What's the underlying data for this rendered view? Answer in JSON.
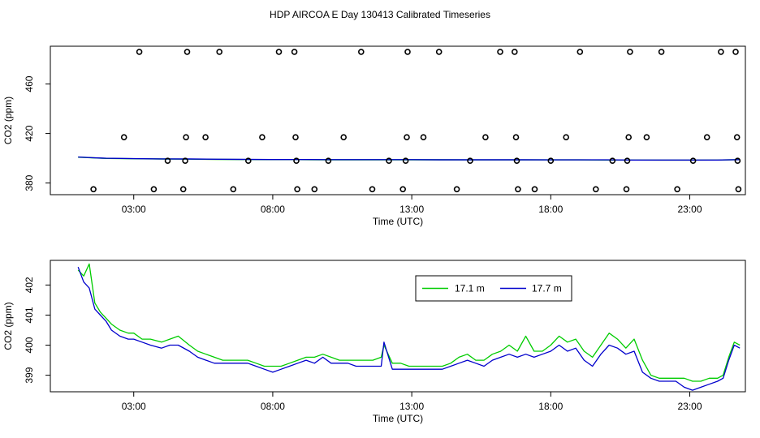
{
  "figure": {
    "title": "HDP AIRCOA E  Day 130413  Calibrated Timeseries",
    "colors": {
      "background": "#ffffff",
      "axes": "#000000",
      "green": "#00cc00",
      "blue": "#0000cc"
    }
  },
  "chart_data": [
    {
      "type": "scatter",
      "xlabel": "Time (UTC)",
      "ylabel": "CO2 (ppm)",
      "xlim": [
        0.0,
        25.0
      ],
      "ylim": [
        370.6,
        490.5
      ],
      "x_ticks": [
        3,
        8,
        13,
        18,
        23
      ],
      "x_tick_labels": [
        "03:00",
        "08:00",
        "13:00",
        "18:00",
        "23:00"
      ],
      "y_ticks": [
        380,
        420,
        460
      ],
      "y_tick_labels": [
        "380",
        "420",
        "460"
      ],
      "grid": false,
      "marker": "open-circle",
      "points": [
        {
          "x": 1.55,
          "y": 375
        },
        {
          "x": 2.65,
          "y": 417
        },
        {
          "x": 3.2,
          "y": 486
        },
        {
          "x": 3.72,
          "y": 375
        },
        {
          "x": 4.22,
          "y": 398
        },
        {
          "x": 4.78,
          "y": 375
        },
        {
          "x": 4.85,
          "y": 398
        },
        {
          "x": 4.88,
          "y": 417
        },
        {
          "x": 4.92,
          "y": 486
        },
        {
          "x": 5.58,
          "y": 417
        },
        {
          "x": 6.08,
          "y": 486
        },
        {
          "x": 6.58,
          "y": 375
        },
        {
          "x": 7.12,
          "y": 398
        },
        {
          "x": 7.62,
          "y": 417
        },
        {
          "x": 8.22,
          "y": 486
        },
        {
          "x": 8.78,
          "y": 486
        },
        {
          "x": 8.82,
          "y": 417
        },
        {
          "x": 8.85,
          "y": 398
        },
        {
          "x": 8.88,
          "y": 375
        },
        {
          "x": 9.5,
          "y": 375
        },
        {
          "x": 10.0,
          "y": 398
        },
        {
          "x": 10.55,
          "y": 417
        },
        {
          "x": 11.18,
          "y": 486
        },
        {
          "x": 11.58,
          "y": 375
        },
        {
          "x": 12.18,
          "y": 398
        },
        {
          "x": 12.68,
          "y": 375
        },
        {
          "x": 12.78,
          "y": 398
        },
        {
          "x": 12.82,
          "y": 417
        },
        {
          "x": 12.85,
          "y": 486
        },
        {
          "x": 13.42,
          "y": 417
        },
        {
          "x": 13.98,
          "y": 486
        },
        {
          "x": 14.62,
          "y": 375
        },
        {
          "x": 15.1,
          "y": 398
        },
        {
          "x": 15.65,
          "y": 417
        },
        {
          "x": 16.18,
          "y": 486
        },
        {
          "x": 16.7,
          "y": 486
        },
        {
          "x": 16.75,
          "y": 417
        },
        {
          "x": 16.78,
          "y": 398
        },
        {
          "x": 16.82,
          "y": 375
        },
        {
          "x": 17.42,
          "y": 375
        },
        {
          "x": 18.0,
          "y": 398
        },
        {
          "x": 18.55,
          "y": 417
        },
        {
          "x": 19.05,
          "y": 486
        },
        {
          "x": 19.62,
          "y": 375
        },
        {
          "x": 20.22,
          "y": 398
        },
        {
          "x": 20.72,
          "y": 375
        },
        {
          "x": 20.75,
          "y": 398
        },
        {
          "x": 20.8,
          "y": 417
        },
        {
          "x": 20.85,
          "y": 486
        },
        {
          "x": 21.45,
          "y": 417
        },
        {
          "x": 21.98,
          "y": 486
        },
        {
          "x": 22.55,
          "y": 375
        },
        {
          "x": 23.12,
          "y": 398
        },
        {
          "x": 23.62,
          "y": 417
        },
        {
          "x": 24.12,
          "y": 486
        },
        {
          "x": 24.65,
          "y": 486
        },
        {
          "x": 24.7,
          "y": 417
        },
        {
          "x": 24.72,
          "y": 398
        },
        {
          "x": 24.75,
          "y": 375
        }
      ],
      "series": [
        {
          "name": "17.1 m",
          "color": "#00cc00",
          "x": [
            1.0,
            1.5,
            2.0,
            3.0,
            4.0,
            5.0,
            6.0,
            7.0,
            8.0,
            9.0,
            10.0,
            11.0,
            12.0,
            13.0,
            14.0,
            15.0,
            16.0,
            17.0,
            18.0,
            19.0,
            20.0,
            21.0,
            22.0,
            23.0,
            24.0,
            24.8
          ],
          "y": [
            400.9,
            400.4,
            399.9,
            399.6,
            399.4,
            399.3,
            399.1,
            399.0,
            398.9,
            398.9,
            398.8,
            398.8,
            398.8,
            398.8,
            398.8,
            398.7,
            398.7,
            398.7,
            398.7,
            398.7,
            398.6,
            398.6,
            398.5,
            398.5,
            398.6,
            398.9
          ]
        },
        {
          "name": "17.7 m",
          "color": "#0000cc",
          "x": [
            1.0,
            1.5,
            2.0,
            3.0,
            4.0,
            5.0,
            6.0,
            7.0,
            8.0,
            9.0,
            10.0,
            11.0,
            12.0,
            13.0,
            14.0,
            15.0,
            16.0,
            17.0,
            18.0,
            19.0,
            20.0,
            21.0,
            22.0,
            23.0,
            24.0,
            24.8
          ],
          "y": [
            401.0,
            400.5,
            400.0,
            399.7,
            399.5,
            399.4,
            399.2,
            399.1,
            399.0,
            399.0,
            398.9,
            398.9,
            398.9,
            398.9,
            398.8,
            398.8,
            398.8,
            398.8,
            398.7,
            398.7,
            398.7,
            398.6,
            398.6,
            398.6,
            398.6,
            398.9
          ]
        }
      ]
    },
    {
      "type": "line",
      "xlabel": "Time (UTC)",
      "ylabel": "CO2 (ppm)",
      "xlim": [
        0.0,
        25.0
      ],
      "ylim": [
        398.45,
        402.82
      ],
      "x_ticks": [
        3,
        8,
        13,
        18,
        23
      ],
      "x_tick_labels": [
        "03:00",
        "08:00",
        "13:00",
        "18:00",
        "23:00"
      ],
      "y_ticks": [
        399,
        400,
        401,
        402
      ],
      "y_tick_labels": [
        "399",
        "400",
        "401",
        "402"
      ],
      "grid": false,
      "legend": {
        "position": "top-right"
      },
      "series": [
        {
          "name": "17.1 m",
          "color": "#00cc00",
          "x": [
            1.0,
            1.2,
            1.4,
            1.6,
            1.8,
            2.0,
            2.2,
            2.5,
            2.8,
            3.0,
            3.3,
            3.6,
            4.0,
            4.3,
            4.6,
            5.0,
            5.3,
            5.6,
            5.9,
            6.2,
            6.5,
            6.8,
            7.1,
            7.4,
            7.7,
            8.0,
            8.3,
            8.6,
            8.9,
            9.2,
            9.5,
            9.8,
            10.1,
            10.4,
            10.7,
            11.0,
            11.3,
            11.6,
            11.9,
            12.0,
            12.3,
            12.6,
            12.9,
            13.2,
            13.5,
            13.8,
            14.1,
            14.4,
            14.7,
            15.0,
            15.3,
            15.6,
            15.9,
            16.2,
            16.5,
            16.8,
            17.1,
            17.4,
            17.7,
            18.0,
            18.3,
            18.6,
            18.9,
            19.2,
            19.5,
            19.8,
            20.1,
            20.4,
            20.7,
            21.0,
            21.3,
            21.6,
            21.9,
            22.2,
            22.5,
            22.8,
            23.1,
            23.4,
            23.7,
            24.0,
            24.2,
            24.4,
            24.6,
            24.8
          ],
          "y": [
            402.5,
            402.3,
            402.7,
            401.4,
            401.1,
            400.9,
            400.7,
            400.5,
            400.4,
            400.4,
            400.2,
            400.2,
            400.1,
            400.2,
            400.3,
            400.0,
            399.8,
            399.7,
            399.6,
            399.5,
            399.5,
            399.5,
            399.5,
            399.4,
            399.3,
            399.3,
            399.3,
            399.4,
            399.5,
            399.6,
            399.6,
            399.7,
            399.6,
            399.5,
            399.5,
            399.5,
            399.5,
            399.5,
            399.6,
            400.0,
            399.4,
            399.4,
            399.3,
            399.3,
            399.3,
            399.3,
            399.3,
            399.4,
            399.6,
            399.7,
            399.5,
            399.5,
            399.7,
            399.8,
            400.0,
            399.8,
            400.3,
            399.8,
            399.8,
            400.0,
            400.3,
            400.1,
            400.2,
            399.8,
            399.6,
            400.0,
            400.4,
            400.2,
            399.9,
            400.2,
            399.5,
            399.0,
            398.9,
            398.9,
            398.9,
            398.9,
            398.8,
            398.8,
            398.9,
            398.9,
            399.0,
            399.6,
            400.1,
            400.0
          ]
        },
        {
          "name": "17.7 m",
          "color": "#0000cc",
          "x": [
            1.0,
            1.2,
            1.4,
            1.6,
            1.8,
            2.0,
            2.2,
            2.5,
            2.8,
            3.0,
            3.3,
            3.6,
            4.0,
            4.3,
            4.6,
            5.0,
            5.3,
            5.6,
            5.9,
            6.2,
            6.5,
            6.8,
            7.1,
            7.4,
            7.7,
            8.0,
            8.3,
            8.6,
            8.9,
            9.2,
            9.5,
            9.8,
            10.1,
            10.4,
            10.7,
            11.0,
            11.3,
            11.6,
            11.9,
            12.0,
            12.3,
            12.6,
            12.9,
            13.2,
            13.5,
            13.8,
            14.1,
            14.4,
            14.7,
            15.0,
            15.3,
            15.6,
            15.9,
            16.2,
            16.5,
            16.8,
            17.1,
            17.4,
            17.7,
            18.0,
            18.3,
            18.6,
            18.9,
            19.2,
            19.5,
            19.8,
            20.1,
            20.4,
            20.7,
            21.0,
            21.3,
            21.6,
            21.9,
            22.2,
            22.5,
            22.8,
            23.1,
            23.4,
            23.7,
            24.0,
            24.2,
            24.4,
            24.6,
            24.8
          ],
          "y": [
            402.6,
            402.1,
            401.9,
            401.2,
            401.0,
            400.8,
            400.5,
            400.3,
            400.2,
            400.2,
            400.1,
            400.0,
            399.9,
            400.0,
            400.0,
            399.8,
            399.6,
            399.5,
            399.4,
            399.4,
            399.4,
            399.4,
            399.4,
            399.3,
            399.2,
            399.1,
            399.2,
            399.3,
            399.4,
            399.5,
            399.4,
            399.6,
            399.4,
            399.4,
            399.4,
            399.3,
            399.3,
            399.3,
            399.3,
            400.1,
            399.2,
            399.2,
            399.2,
            399.2,
            399.2,
            399.2,
            399.2,
            399.3,
            399.4,
            399.5,
            399.4,
            399.3,
            399.5,
            399.6,
            399.7,
            399.6,
            399.7,
            399.6,
            399.7,
            399.8,
            400.0,
            399.8,
            399.9,
            399.5,
            399.3,
            399.7,
            400.0,
            399.9,
            399.7,
            399.8,
            399.1,
            398.9,
            398.8,
            398.8,
            398.8,
            398.6,
            398.5,
            398.6,
            398.7,
            398.8,
            398.9,
            399.5,
            400.0,
            399.9
          ]
        }
      ]
    }
  ]
}
